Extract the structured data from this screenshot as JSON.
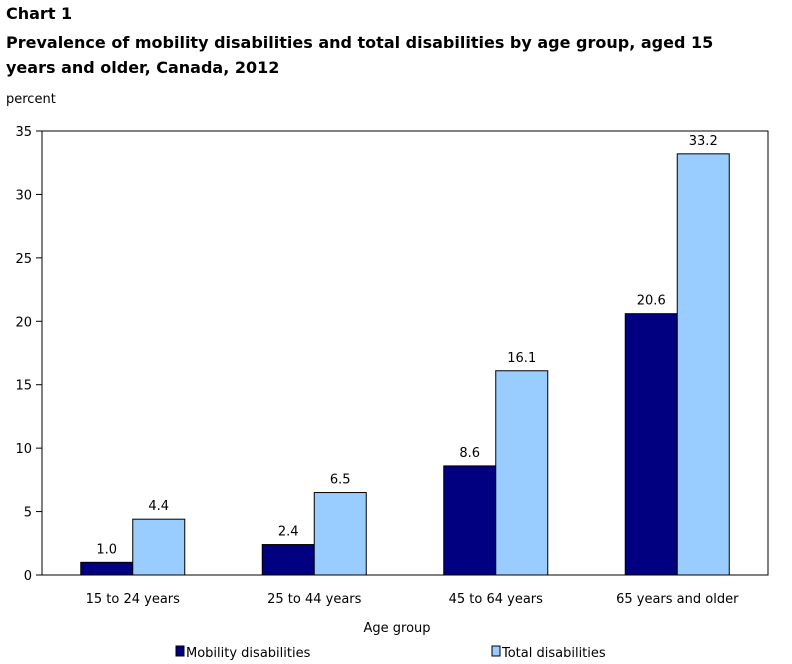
{
  "chart_label": "Chart 1",
  "chart_data": {
    "type": "bar",
    "title": "Prevalence of mobility disabilities and total disabilities by age group, aged 15 years and older, Canada, 2012",
    "ylabel": "percent",
    "xlabel": "Age group",
    "ylim": [
      0,
      35
    ],
    "yticks": [
      0,
      5,
      10,
      15,
      20,
      25,
      30,
      35
    ],
    "categories": [
      "15 to 24 years",
      "25 to 44 years",
      "45 to 64 years",
      "65 years and older"
    ],
    "series": [
      {
        "name": "Mobility disabilities",
        "values": [
          1.0,
          2.4,
          8.6,
          20.6
        ],
        "labels": [
          "1.0",
          "2.4",
          "8.6",
          "20.6"
        ],
        "color": "#000080"
      },
      {
        "name": "Total disabilities",
        "values": [
          4.4,
          6.5,
          16.1,
          33.2
        ],
        "labels": [
          "4.4",
          "6.5",
          "16.1",
          "33.2"
        ],
        "color": "#99ccff"
      }
    ],
    "grid": false,
    "legend_position": "bottom"
  }
}
